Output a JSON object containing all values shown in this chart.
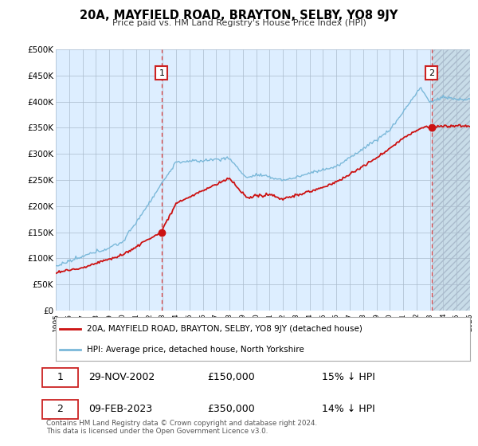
{
  "title": "20A, MAYFIELD ROAD, BRAYTON, SELBY, YO8 9JY",
  "subtitle": "Price paid vs. HM Land Registry's House Price Index (HPI)",
  "ylabel_ticks": [
    "£0",
    "£50K",
    "£100K",
    "£150K",
    "£200K",
    "£250K",
    "£300K",
    "£350K",
    "£400K",
    "£450K",
    "£500K"
  ],
  "ytick_vals": [
    0,
    50000,
    100000,
    150000,
    200000,
    250000,
    300000,
    350000,
    400000,
    450000,
    500000
  ],
  "x_start": 1995,
  "x_end": 2026,
  "xticks": [
    1995,
    1996,
    1997,
    1998,
    1999,
    2000,
    2001,
    2002,
    2003,
    2004,
    2005,
    2006,
    2007,
    2008,
    2009,
    2010,
    2011,
    2012,
    2013,
    2014,
    2015,
    2016,
    2017,
    2018,
    2019,
    2020,
    2021,
    2022,
    2023,
    2024,
    2025,
    2026
  ],
  "hpi_color": "#7ab8d9",
  "price_color": "#cc1111",
  "marker1_date": 2002.92,
  "marker1_price": 150000,
  "marker1_label": "1",
  "marker2_date": 2023.12,
  "marker2_price": 350000,
  "marker2_label": "2",
  "legend_line1": "20A, MAYFIELD ROAD, BRAYTON, SELBY, YO8 9JY (detached house)",
  "legend_line2": "HPI: Average price, detached house, North Yorkshire",
  "table_rows": [
    [
      "1",
      "29-NOV-2002",
      "£150,000",
      "15% ↓ HPI"
    ],
    [
      "2",
      "09-FEB-2023",
      "£350,000",
      "14% ↓ HPI"
    ]
  ],
  "footer": "Contains HM Land Registry data © Crown copyright and database right 2024.\nThis data is licensed under the Open Government Licence v3.0.",
  "bg_color": "#ffffff",
  "plot_bg_color": "#ddeeff",
  "grid_color": "#aabbcc",
  "vline_color": "#dd4444",
  "hatch_start": 2023.12,
  "hatch_color": "#bbccdd"
}
